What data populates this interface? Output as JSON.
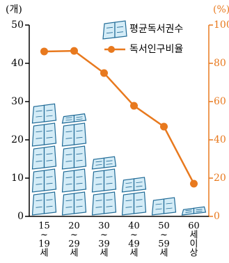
{
  "chart_data": {
    "type": "pictogram-line",
    "y_label": "(개)",
    "y2_label": "(%)",
    "categories": [
      [
        "15",
        "~",
        "19",
        "세"
      ],
      [
        "20",
        "~",
        "29",
        "세"
      ],
      [
        "30",
        "~",
        "39",
        "세"
      ],
      [
        "40",
        "~",
        "49",
        "세"
      ],
      [
        "50",
        "~",
        "59",
        "세"
      ],
      [
        "60",
        "세",
        "이",
        "상"
      ]
    ],
    "series": [
      {
        "name": "평균독서권수",
        "color": "#d4ecf7",
        "values": [
          29.4,
          26.8,
          15.6,
          10.2,
          4.9,
          2.5
        ]
      },
      {
        "name": "독서인구비율",
        "color": "#e8791e",
        "axis": "y2",
        "values": [
          86.2,
          86.5,
          74.9,
          57.8,
          46.9,
          17.1
        ]
      }
    ],
    "ylim": [
      0,
      50
    ],
    "yticks": [
      0,
      10,
      20,
      30,
      40,
      50
    ],
    "y2lim": [
      0,
      100
    ],
    "y2ticks": [
      0,
      20,
      40,
      60,
      80,
      100
    ]
  }
}
